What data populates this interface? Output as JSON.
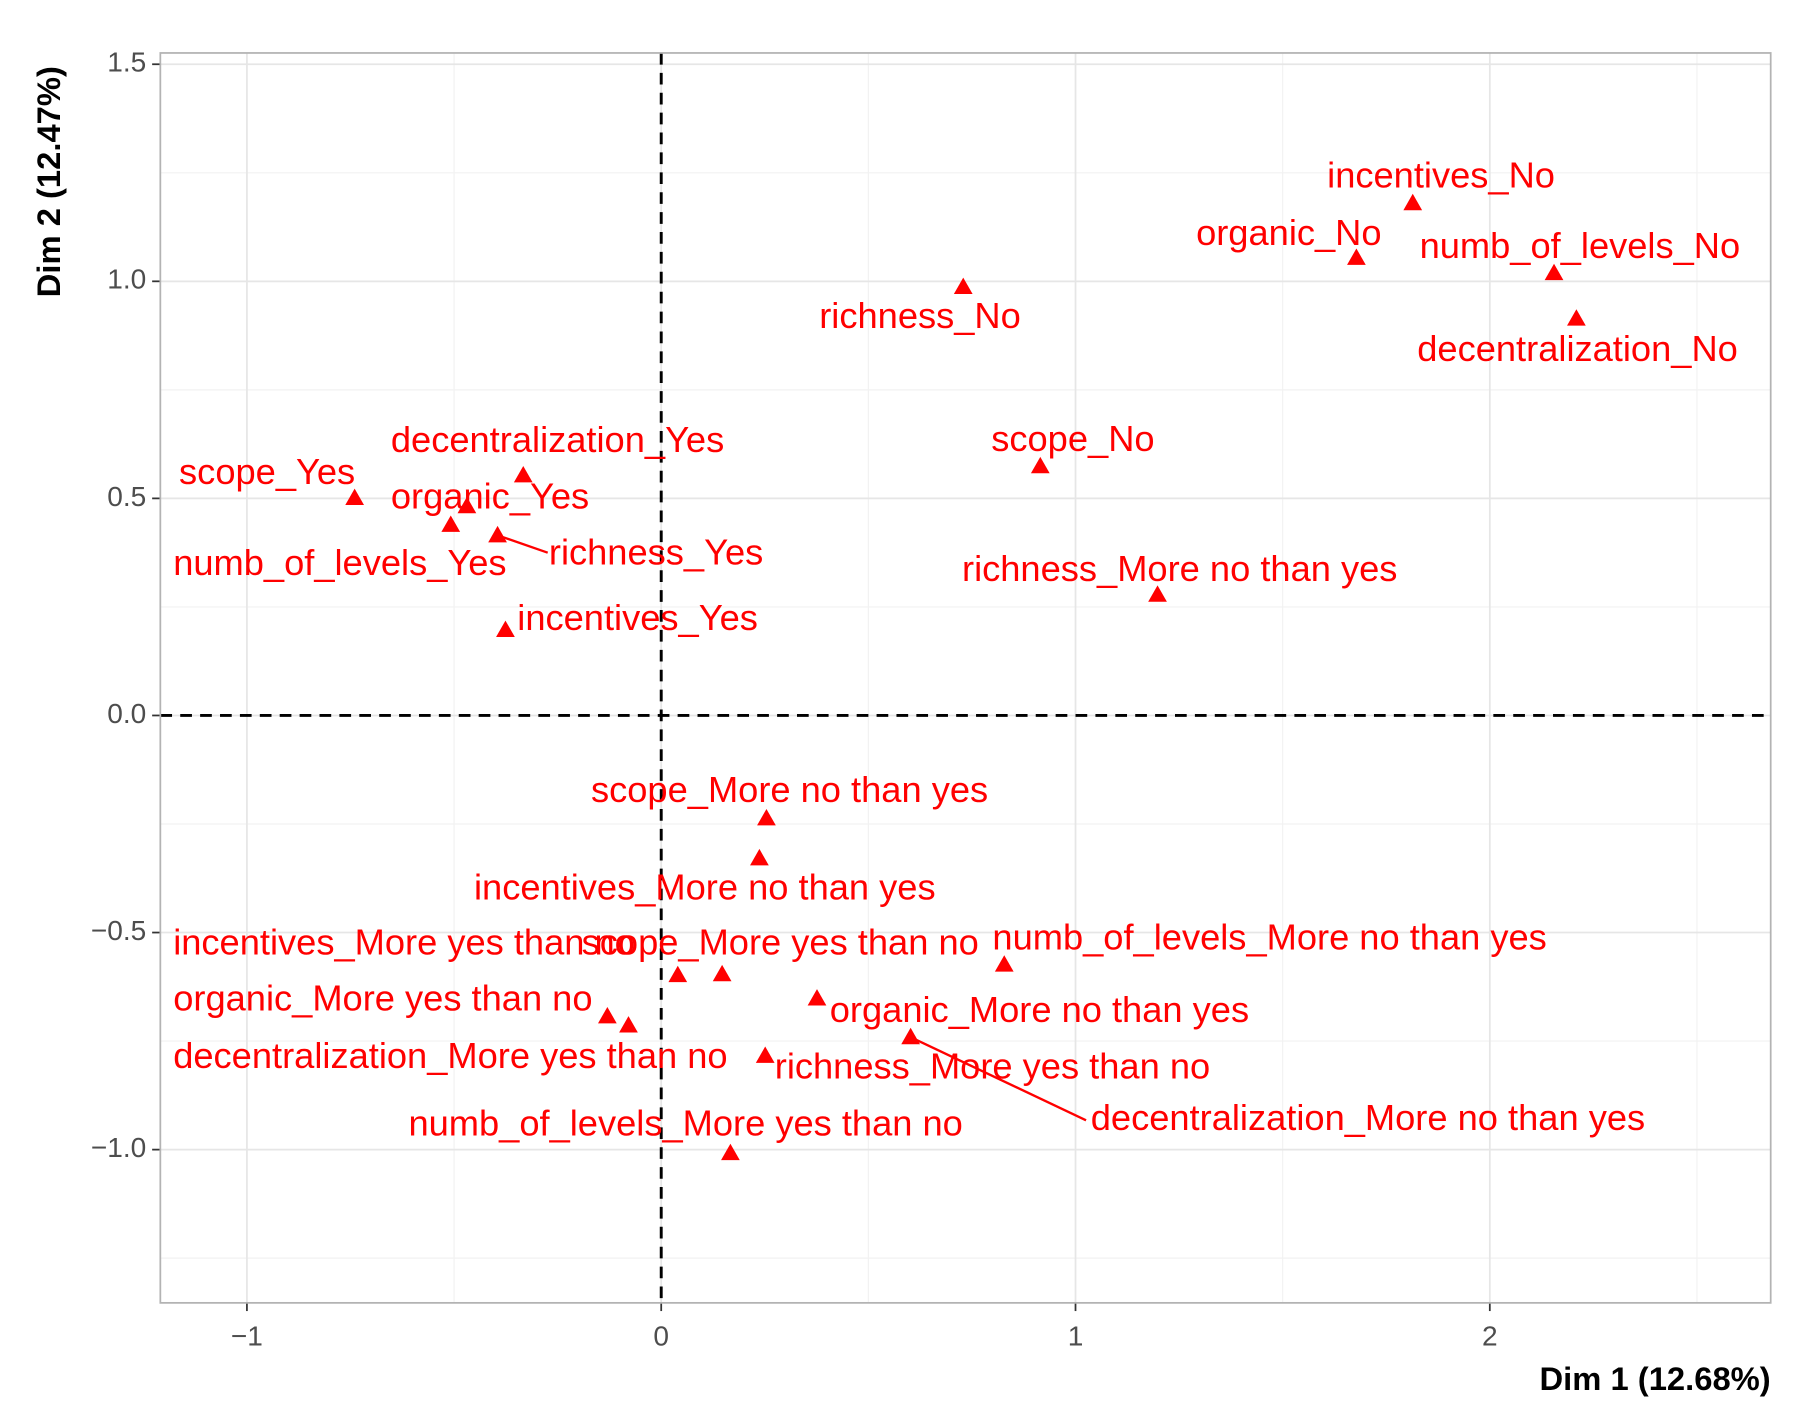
{
  "chart_data": {
    "type": "scatter",
    "x_label": "Dim 1 (12.68%)",
    "y_label": "Dim 2 (12.47%)",
    "color": "#ff0000",
    "marker": "triangle",
    "grid": true,
    "labels": [
      "incentives_No",
      "organic_No",
      "numb_of_levels_No",
      "decentralization_No",
      "richness_No",
      "scope_No",
      "richness_More no than yes",
      "decentralization_Yes",
      "scope_Yes",
      "organic_Yes",
      "numb_of_levels_Yes",
      "richness_Yes",
      "incentives_Yes",
      "scope_More no than yes",
      "incentives_More no than yes",
      "incentives_More yes than no",
      "scope_More yes than no",
      "numb_of_levels_More no than yes",
      "organic_More no than yes",
      "organic_More yes than no",
      "decentralization_More yes than no",
      "richness_More yes than no",
      "decentralization_More no than yes",
      "numb_of_levels_More yes than no"
    ],
    "x": [
      1.814,
      1.678,
      2.155,
      2.209,
      0.729,
      0.915,
      1.198,
      -0.333,
      -0.74,
      -0.469,
      -0.508,
      -0.395,
      -0.376,
      0.254,
      0.237,
      0.04,
      0.147,
      0.828,
      0.376,
      -0.13,
      -0.079,
      0.251,
      0.602,
      0.167
    ],
    "values": [
      1.18,
      1.054,
      1.019,
      0.914,
      0.987,
      0.574,
      0.278,
      0.553,
      0.501,
      0.482,
      0.439,
      0.415,
      0.197,
      -0.237,
      -0.329,
      -0.598,
      -0.596,
      -0.574,
      -0.652,
      -0.693,
      -0.714,
      -0.784,
      -0.741,
      -1.008
    ],
    "xlim": [
      -1.209,
      2.678
    ],
    "ylim": [
      -1.353,
      1.526
    ],
    "xticks": [
      {
        "value": -1,
        "label": "−1"
      },
      0,
      1,
      2
    ],
    "yticks": [
      {
        "value": -1.0,
        "label": "−1.0"
      },
      {
        "value": -0.5,
        "label": "−0.5"
      },
      {
        "value": 0.0,
        "label": "0.0"
      },
      0.5,
      {
        "value": 1.0,
        "label": "1.0"
      },
      1.5
    ]
  }
}
